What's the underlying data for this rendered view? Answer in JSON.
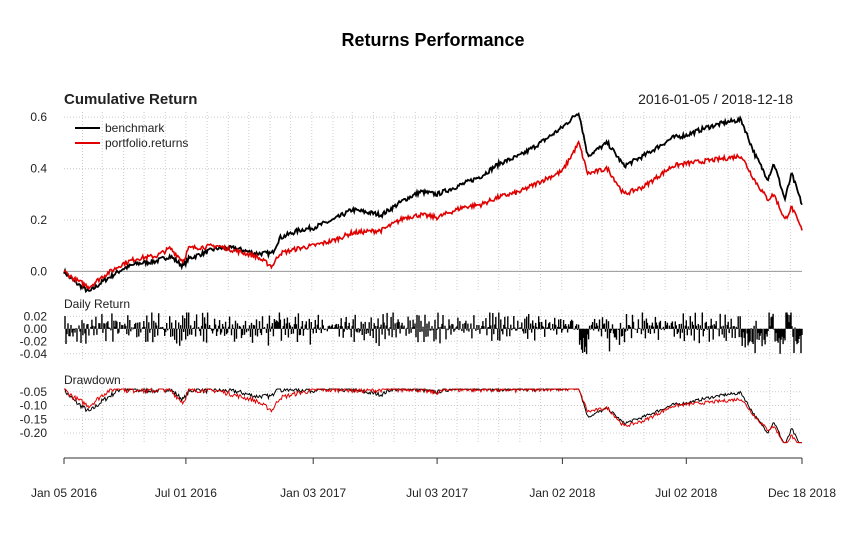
{
  "chart_data": {
    "type": "line",
    "title": "Returns Performance",
    "subtitle": "Cumulative Return",
    "date_range": "2016-01-05 / 2018-12-18",
    "x_ticks": [
      "Jan 05 2016",
      "Jul 01 2016",
      "Jan 03 2017",
      "Jul 03 2017",
      "Jan 02 2018",
      "Jul 02 2018",
      "Dec 18 2018"
    ],
    "legend": {
      "position": "top-left",
      "entries": [
        "benchmark",
        "portfolio.returns"
      ]
    },
    "colors": {
      "benchmark": "#000000",
      "portfolio.returns": "#e00000"
    },
    "grid": true,
    "panels": [
      {
        "name": "Cumulative Return",
        "ylim": [
          -0.08,
          0.62
        ],
        "y_ticks": [
          "0.0",
          "0.2",
          "0.4",
          "0.6"
        ],
        "y_tick_values": [
          0.0,
          0.2,
          0.4,
          0.6
        ],
        "series": [
          {
            "name": "benchmark",
            "x": [
              "2016-01-05",
              "2016-01-20",
              "2016-02-11",
              "2016-03-01",
              "2016-03-31",
              "2016-04-20",
              "2016-05-19",
              "2016-06-08",
              "2016-06-27",
              "2016-07-05",
              "2016-08-15",
              "2016-09-12",
              "2016-10-10",
              "2016-11-04",
              "2016-11-15",
              "2016-12-13",
              "2017-01-03",
              "2017-02-01",
              "2017-03-01",
              "2017-04-13",
              "2017-05-17",
              "2017-06-09",
              "2017-07-03",
              "2017-08-10",
              "2017-09-05",
              "2017-10-02",
              "2017-11-01",
              "2017-12-01",
              "2018-01-02",
              "2018-01-26",
              "2018-02-08",
              "2018-03-09",
              "2018-04-02",
              "2018-05-01",
              "2018-06-12",
              "2018-07-02",
              "2018-08-01",
              "2018-08-29",
              "2018-09-20",
              "2018-10-11",
              "2018-10-29",
              "2018-11-07",
              "2018-11-23",
              "2018-12-03",
              "2018-12-18"
            ],
            "values": [
              0.0,
              -0.04,
              -0.08,
              -0.04,
              0.01,
              0.03,
              0.04,
              0.06,
              0.02,
              0.05,
              0.09,
              0.09,
              0.07,
              0.07,
              0.13,
              0.16,
              0.17,
              0.2,
              0.24,
              0.22,
              0.28,
              0.31,
              0.3,
              0.34,
              0.37,
              0.42,
              0.45,
              0.5,
              0.56,
              0.62,
              0.45,
              0.5,
              0.41,
              0.45,
              0.52,
              0.53,
              0.56,
              0.58,
              0.59,
              0.45,
              0.36,
              0.42,
              0.28,
              0.38,
              0.26
            ]
          },
          {
            "name": "portfolio.returns",
            "x": [
              "2016-01-05",
              "2016-01-20",
              "2016-02-11",
              "2016-03-01",
              "2016-03-31",
              "2016-04-20",
              "2016-05-19",
              "2016-06-08",
              "2016-06-27",
              "2016-07-05",
              "2016-08-15",
              "2016-09-12",
              "2016-10-10",
              "2016-11-04",
              "2016-11-15",
              "2016-12-13",
              "2017-01-03",
              "2017-02-01",
              "2017-03-01",
              "2017-04-13",
              "2017-05-17",
              "2017-06-09",
              "2017-07-03",
              "2017-08-10",
              "2017-09-05",
              "2017-10-02",
              "2017-11-01",
              "2017-12-01",
              "2018-01-02",
              "2018-01-26",
              "2018-02-08",
              "2018-03-09",
              "2018-04-02",
              "2018-05-01",
              "2018-06-12",
              "2018-07-02",
              "2018-08-01",
              "2018-08-29",
              "2018-09-20",
              "2018-10-11",
              "2018-10-29",
              "2018-11-07",
              "2018-11-23",
              "2018-12-03",
              "2018-12-18"
            ],
            "values": [
              0.0,
              -0.03,
              -0.06,
              -0.02,
              0.03,
              0.05,
              0.06,
              0.09,
              0.04,
              0.09,
              0.1,
              0.08,
              0.06,
              0.02,
              0.07,
              0.09,
              0.1,
              0.12,
              0.15,
              0.16,
              0.21,
              0.22,
              0.21,
              0.25,
              0.26,
              0.29,
              0.31,
              0.35,
              0.39,
              0.5,
              0.38,
              0.4,
              0.3,
              0.33,
              0.41,
              0.42,
              0.43,
              0.44,
              0.45,
              0.35,
              0.28,
              0.3,
              0.2,
              0.25,
              0.16
            ]
          }
        ]
      },
      {
        "name": "Daily Return",
        "ylim": [
          -0.05,
          0.03
        ],
        "y_ticks": [
          "0.02",
          "0.00",
          "-0.02",
          "-0.04"
        ],
        "y_tick_values": [
          0.02,
          0.0,
          -0.02,
          -0.04
        ]
      },
      {
        "name": "Drawdown",
        "ylim": [
          -0.24,
          0.0
        ],
        "y_ticks": [
          "-0.05",
          "-0.10",
          "-0.15",
          "-0.20"
        ],
        "y_tick_values": [
          -0.05,
          -0.1,
          -0.15,
          -0.2
        ]
      }
    ]
  }
}
